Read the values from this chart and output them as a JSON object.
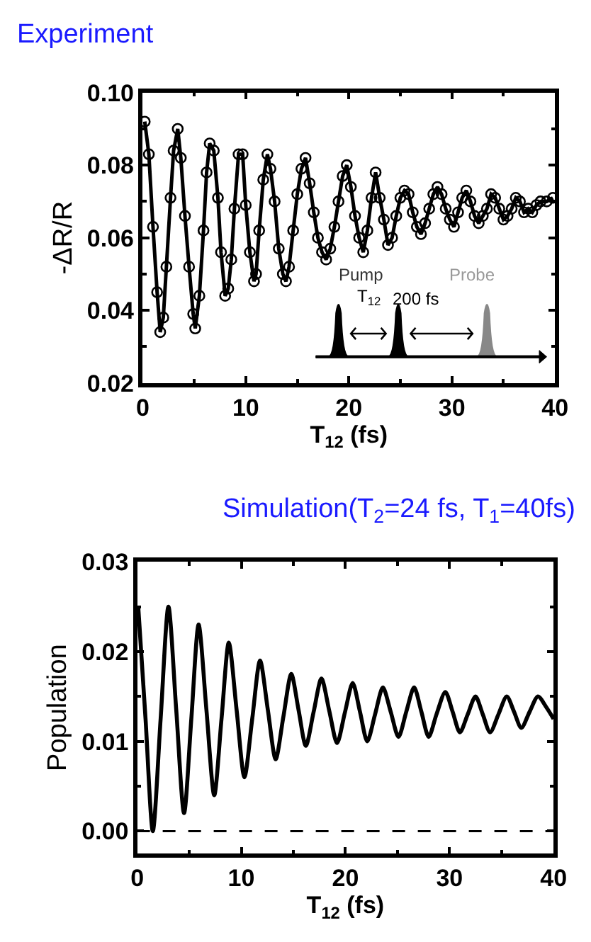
{
  "chart_data": [
    {
      "type": "line",
      "title": "Experiment",
      "xlabel": "T$_{12}$ (fs)",
      "ylabel": "-ΔR/R",
      "xlim": [
        0,
        40
      ],
      "xticks": [
        0,
        10,
        20,
        30,
        40
      ],
      "ylim": [
        0.02,
        0.1
      ],
      "yticks": [
        0.02,
        0.04,
        0.06,
        0.08,
        {
          "value": 0.1,
          "label": "0.10"
        }
      ],
      "marker": "circle",
      "line_style": "solid",
      "annotations": [
        "Pump",
        "Probe",
        "T$_{12}$",
        "200 fs"
      ],
      "series": [
        {
          "color": "#000000",
          "x": [
            0.2,
            0.6,
            1.0,
            1.4,
            1.7,
            2.0,
            2.3,
            2.7,
            3.0,
            3.4,
            3.7,
            4.1,
            4.5,
            4.9,
            5.1,
            5.5,
            5.9,
            6.2,
            6.5,
            6.9,
            7.3,
            7.6,
            8.0,
            8.3,
            8.6,
            8.9,
            9.3,
            9.7,
            10.0,
            10.4,
            10.8,
            11.0,
            11.3,
            11.7,
            12.1,
            12.4,
            12.8,
            13.2,
            13.6,
            13.9,
            14.2,
            14.6,
            15.0,
            15.4,
            15.8,
            16.2,
            16.6,
            17.0,
            17.4,
            17.8,
            18.2,
            18.6,
            19.0,
            19.4,
            19.8,
            20.2,
            20.6,
            21.0,
            21.4,
            21.8,
            22.2,
            22.6,
            23.0,
            23.4,
            23.8,
            24.2,
            24.6,
            25.0,
            25.4,
            25.8,
            26.2,
            26.6,
            27.0,
            27.4,
            27.8,
            28.2,
            28.6,
            29.0,
            29.4,
            29.8,
            30.2,
            30.6,
            31.0,
            31.4,
            31.8,
            32.2,
            32.6,
            33.0,
            33.4,
            33.8,
            34.2,
            34.6,
            35.0,
            35.4,
            35.8,
            36.2,
            36.6,
            37.0,
            37.4,
            37.8,
            38.2,
            38.6,
            39.2,
            39.8
          ],
          "values": [
            0.092,
            0.083,
            0.063,
            0.045,
            0.034,
            0.038,
            0.052,
            0.071,
            0.084,
            0.09,
            0.082,
            0.066,
            0.052,
            0.039,
            0.035,
            0.044,
            0.062,
            0.078,
            0.086,
            0.084,
            0.071,
            0.056,
            0.044,
            0.046,
            0.054,
            0.068,
            0.083,
            0.083,
            0.069,
            0.056,
            0.048,
            0.05,
            0.062,
            0.076,
            0.083,
            0.079,
            0.07,
            0.057,
            0.05,
            0.048,
            0.052,
            0.062,
            0.072,
            0.079,
            0.082,
            0.075,
            0.067,
            0.06,
            0.056,
            0.054,
            0.057,
            0.063,
            0.07,
            0.077,
            0.08,
            0.074,
            0.066,
            0.06,
            0.056,
            0.062,
            0.071,
            0.078,
            0.071,
            0.065,
            0.058,
            0.06,
            0.066,
            0.071,
            0.073,
            0.072,
            0.067,
            0.063,
            0.061,
            0.064,
            0.068,
            0.072,
            0.074,
            0.072,
            0.068,
            0.065,
            0.063,
            0.067,
            0.071,
            0.073,
            0.07,
            0.066,
            0.064,
            0.066,
            0.068,
            0.072,
            0.071,
            0.068,
            0.065,
            0.066,
            0.068,
            0.071,
            0.07,
            0.067,
            0.068,
            0.067,
            0.069,
            0.07,
            0.07,
            0.071
          ]
        }
      ]
    },
    {
      "type": "line",
      "title": "Simulation(T$_{2}$=24 fs, T$_{1}$=40fs)",
      "xlabel": "T$_{12}$ (fs)",
      "ylabel": "Population",
      "xlim": [
        0,
        40
      ],
      "xticks": [
        0,
        10,
        20,
        30,
        40
      ],
      "ylim": [
        -0.0025,
        0.03
      ],
      "yticks": [
        {
          "value": 0,
          "label": "0.00"
        },
        0.01,
        0.02,
        0.03
      ],
      "marker": "none",
      "line_style": "solid",
      "ref_lines": [
        {
          "axis": "y",
          "value": 0,
          "line_style": "dashed",
          "color": "#000000"
        }
      ],
      "series": [
        {
          "color": "#000000",
          "x": [
            0.1,
            0.8,
            1.5,
            2.25,
            3.0,
            3.75,
            4.5,
            5.2,
            5.9,
            6.65,
            7.4,
            8.1,
            8.8,
            9.55,
            10.3,
            11.05,
            11.8,
            12.55,
            13.3,
            14.05,
            14.8,
            15.5,
            16.2,
            16.95,
            17.7,
            18.45,
            19.2,
            19.95,
            20.7,
            21.4,
            22.1,
            22.85,
            23.6,
            24.35,
            25.1,
            25.85,
            26.6,
            27.3,
            28.0,
            28.75,
            29.6,
            30.3,
            31.0,
            31.75,
            32.5,
            33.2,
            33.9,
            34.7,
            35.5,
            36.2,
            36.9,
            37.7,
            38.5,
            39.3,
            40.0
          ],
          "values": [
            0.025,
            0.0125,
            0.0,
            0.0125,
            0.025,
            0.0135,
            0.002,
            0.0125,
            0.023,
            0.0135,
            0.004,
            0.0125,
            0.021,
            0.0135,
            0.006,
            0.0125,
            0.019,
            0.0135,
            0.008,
            0.0128,
            0.0175,
            0.0135,
            0.0095,
            0.0133,
            0.017,
            0.0134,
            0.0098,
            0.0132,
            0.0165,
            0.0133,
            0.01,
            0.013,
            0.016,
            0.0133,
            0.0105,
            0.0133,
            0.016,
            0.0133,
            0.0105,
            0.013,
            0.0155,
            0.0133,
            0.011,
            0.013,
            0.015,
            0.013,
            0.011,
            0.013,
            0.015,
            0.0133,
            0.0115,
            0.0133,
            0.015,
            0.0138,
            0.0125
          ]
        }
      ]
    }
  ]
}
